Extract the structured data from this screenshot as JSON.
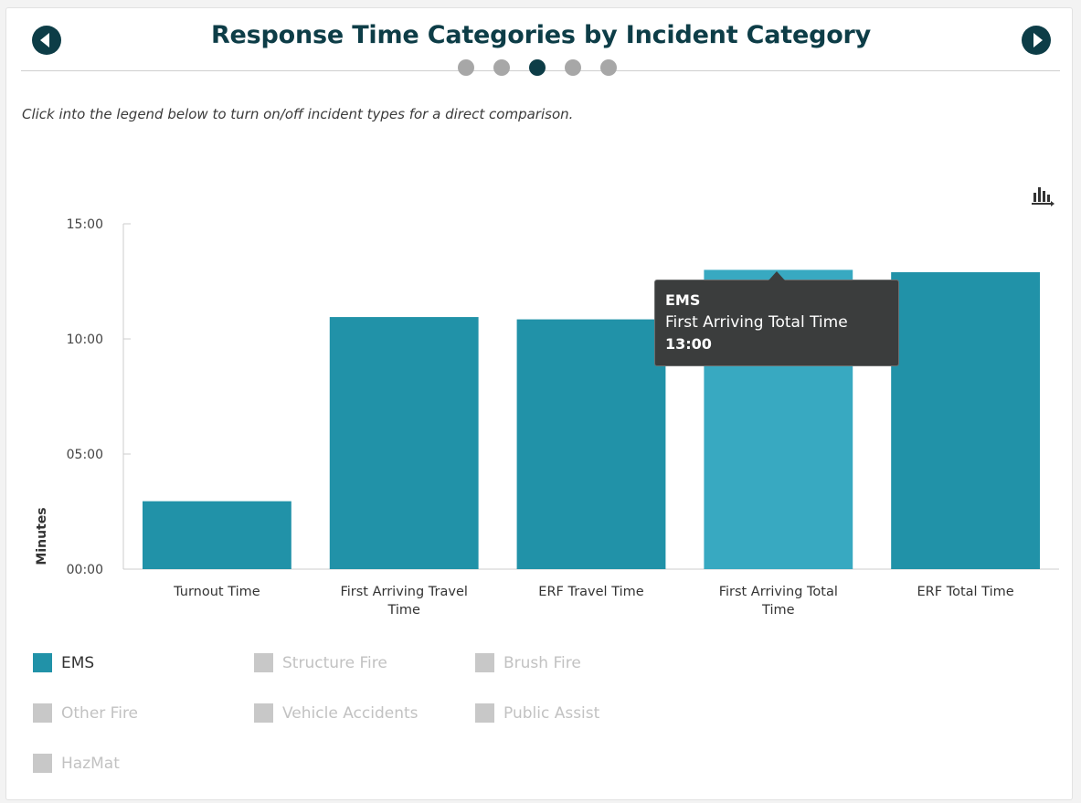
{
  "header": {
    "title": "Response Time Categories by Incident Category",
    "prev_icon": "chevron-left-circle-icon",
    "next_icon": "chevron-right-circle-icon",
    "pager": {
      "count": 5,
      "active_index": 2
    }
  },
  "instructions": "Click into the legend below to turn on/off incident types for a direct comparison.",
  "export_icon": "chart-export-icon",
  "colors": {
    "title": "#0d3d47",
    "bar": "#2192a8",
    "bar_hover": "#38a9c1",
    "legend_inactive": "#c8c8c8",
    "legend_text_active": "#333333",
    "legend_text_inactive": "#c2c2c2"
  },
  "chart_data": {
    "type": "bar",
    "title": "",
    "xlabel": "",
    "ylabel": "Minutes",
    "ylim": [
      0,
      15
    ],
    "yticks": [
      0,
      5,
      10,
      15
    ],
    "ytick_labels": [
      "00:00",
      "05:00",
      "10:00",
      "15:00"
    ],
    "categories": [
      "Turnout Time",
      "First Arriving Travel Time",
      "ERF Travel Time",
      "First Arriving Total Time",
      "ERF Total Time"
    ],
    "category_label_lines": [
      [
        "Turnout Time"
      ],
      [
        "First Arriving Travel",
        "Time"
      ],
      [
        "ERF Travel Time"
      ],
      [
        "First Arriving Total",
        "Time"
      ],
      [
        "ERF Total Time"
      ]
    ],
    "series": [
      {
        "name": "EMS",
        "values": [
          2.95,
          10.95,
          10.85,
          13.0,
          12.9
        ]
      }
    ],
    "highlighted_index": 3,
    "grid": false,
    "legend": "bottom"
  },
  "tooltip": {
    "series": "EMS",
    "category": "First Arriving Total Time",
    "value": "13:00"
  },
  "legend": [
    {
      "label": "EMS",
      "active": true
    },
    {
      "label": "Structure Fire",
      "active": false
    },
    {
      "label": "Brush Fire",
      "active": false
    },
    {
      "label": "Other Fire",
      "active": false
    },
    {
      "label": "Vehicle Accidents",
      "active": false
    },
    {
      "label": "Public Assist",
      "active": false
    },
    {
      "label": "HazMat",
      "active": false
    }
  ]
}
